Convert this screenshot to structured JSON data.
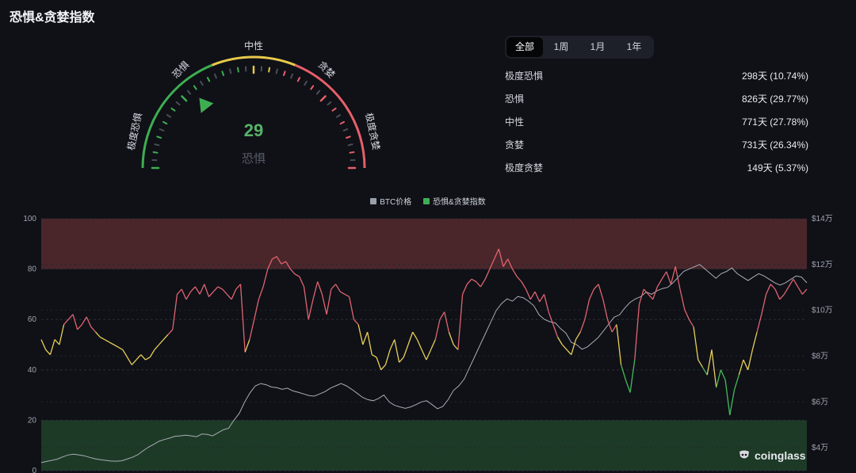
{
  "title": "恐惧&贪婪指数",
  "gauge": {
    "value": "29",
    "classification": "恐惧",
    "labels": {
      "extreme_fear": "极度恐惧",
      "fear": "恐惧",
      "neutral": "中性",
      "greed": "贪婪",
      "extreme_greed": "极度贪婪"
    },
    "colors": {
      "extreme_fear": "#3fae52",
      "fear": "#3fae52",
      "neutral": "#e8c94a",
      "greed": "#e85f6a",
      "extreme_greed": "#e85f6a"
    }
  },
  "tabs": [
    {
      "label": "全部",
      "active": true
    },
    {
      "label": "1周",
      "active": false
    },
    {
      "label": "1月",
      "active": false
    },
    {
      "label": "1年",
      "active": false
    }
  ],
  "stats": [
    {
      "label": "极度恐惧",
      "value": "298天 (10.74%)"
    },
    {
      "label": "恐惧",
      "value": "826天 (29.77%)"
    },
    {
      "label": "中性",
      "value": "771天 (27.78%)"
    },
    {
      "label": "贪婪",
      "value": "731天 (26.34%)"
    },
    {
      "label": "极度贪婪",
      "value": "149天 (5.37%)"
    }
  ],
  "legend": [
    {
      "name": "BTC价格",
      "color": "#9aa0aa"
    },
    {
      "name": "恐惧&贪婪指数",
      "color": "#3fae52"
    }
  ],
  "brand": "coinglass",
  "chart_data": {
    "type": "line",
    "ylim_left": [
      0,
      100
    ],
    "yticks_left": [
      "0",
      "20",
      "40",
      "60",
      "80",
      "100"
    ],
    "yticks_left_values": [
      0,
      20,
      40,
      60,
      80,
      100
    ],
    "ylim_right": [
      30000,
      140000
    ],
    "yticks_right": [
      "$4万",
      "$6万",
      "$8万",
      "$10万",
      "$12万",
      "$14万"
    ],
    "yticks_right_values": [
      40000,
      60000,
      80000,
      100000,
      120000,
      140000
    ],
    "zones": [
      {
        "from": 80,
        "to": 100,
        "color": "#4a262b"
      },
      {
        "from": 0,
        "to": 20,
        "color": "#1d3a26"
      }
    ],
    "series": [
      {
        "name": "恐惧&贪婪指数",
        "values": [
          52,
          48,
          46,
          52,
          50,
          58,
          60,
          62,
          56,
          58,
          61,
          57,
          55,
          53,
          52,
          51,
          50,
          49,
          48,
          45,
          42,
          44,
          46,
          44,
          45,
          48,
          50,
          52,
          54,
          56,
          70,
          72,
          68,
          71,
          73,
          70,
          74,
          69,
          71,
          73,
          72,
          70,
          68,
          72,
          74,
          47,
          52,
          60,
          68,
          73,
          80,
          84,
          85,
          82,
          83,
          80,
          78,
          77,
          73,
          60,
          68,
          75,
          70,
          62,
          72,
          74,
          71,
          70,
          69,
          60,
          58,
          50,
          55,
          46,
          45,
          40,
          42,
          48,
          52,
          43,
          45,
          50,
          55,
          52,
          48,
          44,
          48,
          52,
          60,
          63,
          55,
          50,
          48,
          70,
          74,
          76,
          75,
          73,
          76,
          80,
          84,
          88,
          81,
          84,
          80,
          77,
          75,
          72,
          68,
          71,
          67,
          70,
          63,
          58,
          53,
          50,
          48,
          46,
          52,
          55,
          60,
          68,
          72,
          74,
          68,
          60,
          55,
          58,
          42,
          36,
          31,
          44,
          66,
          72,
          70,
          68,
          73,
          76,
          79,
          74,
          81,
          72,
          64,
          60,
          57,
          44,
          41,
          38,
          48,
          33,
          40,
          36,
          22,
          32,
          38,
          44,
          40,
          48,
          55,
          62,
          70,
          74,
          72,
          68,
          70,
          73,
          76,
          73,
          70,
          72
        ]
      },
      {
        "name": "BTC价格",
        "values": [
          33500,
          34000,
          34500,
          35000,
          36000,
          36800,
          37200,
          36900,
          36500,
          35800,
          35200,
          34800,
          34500,
          34200,
          34100,
          34300,
          35000,
          35800,
          36900,
          38600,
          40200,
          41500,
          42800,
          43600,
          44200,
          45000,
          45200,
          45500,
          45200,
          44800,
          46000,
          45800,
          45200,
          46500,
          47800,
          48500,
          52000,
          55000,
          60000,
          64000,
          67000,
          68000,
          67500,
          66500,
          66200,
          65500,
          66000,
          64800,
          64200,
          63500,
          62800,
          62500,
          63500,
          64500,
          66000,
          67000,
          68000,
          67000,
          65500,
          63800,
          62000,
          61000,
          60500,
          61500,
          63000,
          60000,
          58500,
          57800,
          57200,
          57800,
          58800,
          60000,
          60500,
          58800,
          57000,
          58000,
          61000,
          65000,
          67000,
          70000,
          75000,
          80000,
          85000,
          90000,
          95000,
          100000,
          103000,
          105000,
          104000,
          106000,
          105500,
          104000,
          102000,
          98000,
          96000,
          95000,
          94500,
          92000,
          90000,
          86000,
          85000,
          83000,
          84000,
          86000,
          88000,
          91000,
          94000,
          97000,
          98000,
          101000,
          103500,
          105000,
          106000,
          108000,
          107000,
          108500,
          109500,
          110000,
          112000,
          114500,
          117000,
          118000,
          119000,
          120000,
          118000,
          116000,
          114000,
          116000,
          117000,
          118500,
          116000,
          114500,
          113000,
          114500,
          116000,
          115000,
          113500,
          112000,
          111000,
          112000,
          113500,
          115000,
          114500,
          112000
        ]
      }
    ]
  }
}
